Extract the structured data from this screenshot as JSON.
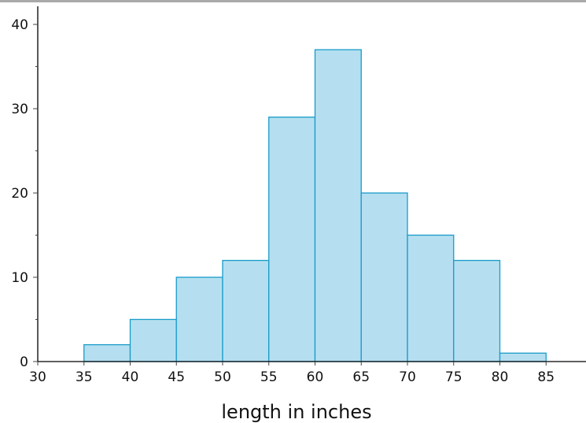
{
  "chart_data": {
    "type": "bar",
    "title": "",
    "xlabel": "length in inches",
    "ylabel": "",
    "bins": [
      {
        "x0": 35,
        "x1": 40,
        "count": 2
      },
      {
        "x0": 40,
        "x1": 45,
        "count": 5
      },
      {
        "x0": 45,
        "x1": 50,
        "count": 10
      },
      {
        "x0": 50,
        "x1": 55,
        "count": 12
      },
      {
        "x0": 55,
        "x1": 60,
        "count": 29
      },
      {
        "x0": 60,
        "x1": 65,
        "count": 37
      },
      {
        "x0": 65,
        "x1": 70,
        "count": 20
      },
      {
        "x0": 70,
        "x1": 75,
        "count": 15
      },
      {
        "x0": 75,
        "x1": 80,
        "count": 12
      },
      {
        "x0": 80,
        "x1": 85,
        "count": 1
      }
    ],
    "xlim": [
      30,
      90
    ],
    "ylim": [
      0,
      41
    ],
    "x_ticks": [
      "30",
      "35",
      "40",
      "45",
      "50",
      "55",
      "60",
      "65",
      "70",
      "75",
      "80",
      "85"
    ],
    "y_ticks": [
      "0",
      "10",
      "20",
      "30",
      "40"
    ],
    "grid": false,
    "colors": {
      "fill": "#b5dff0",
      "stroke": "#1a9cc9",
      "axis": "#000000"
    }
  }
}
